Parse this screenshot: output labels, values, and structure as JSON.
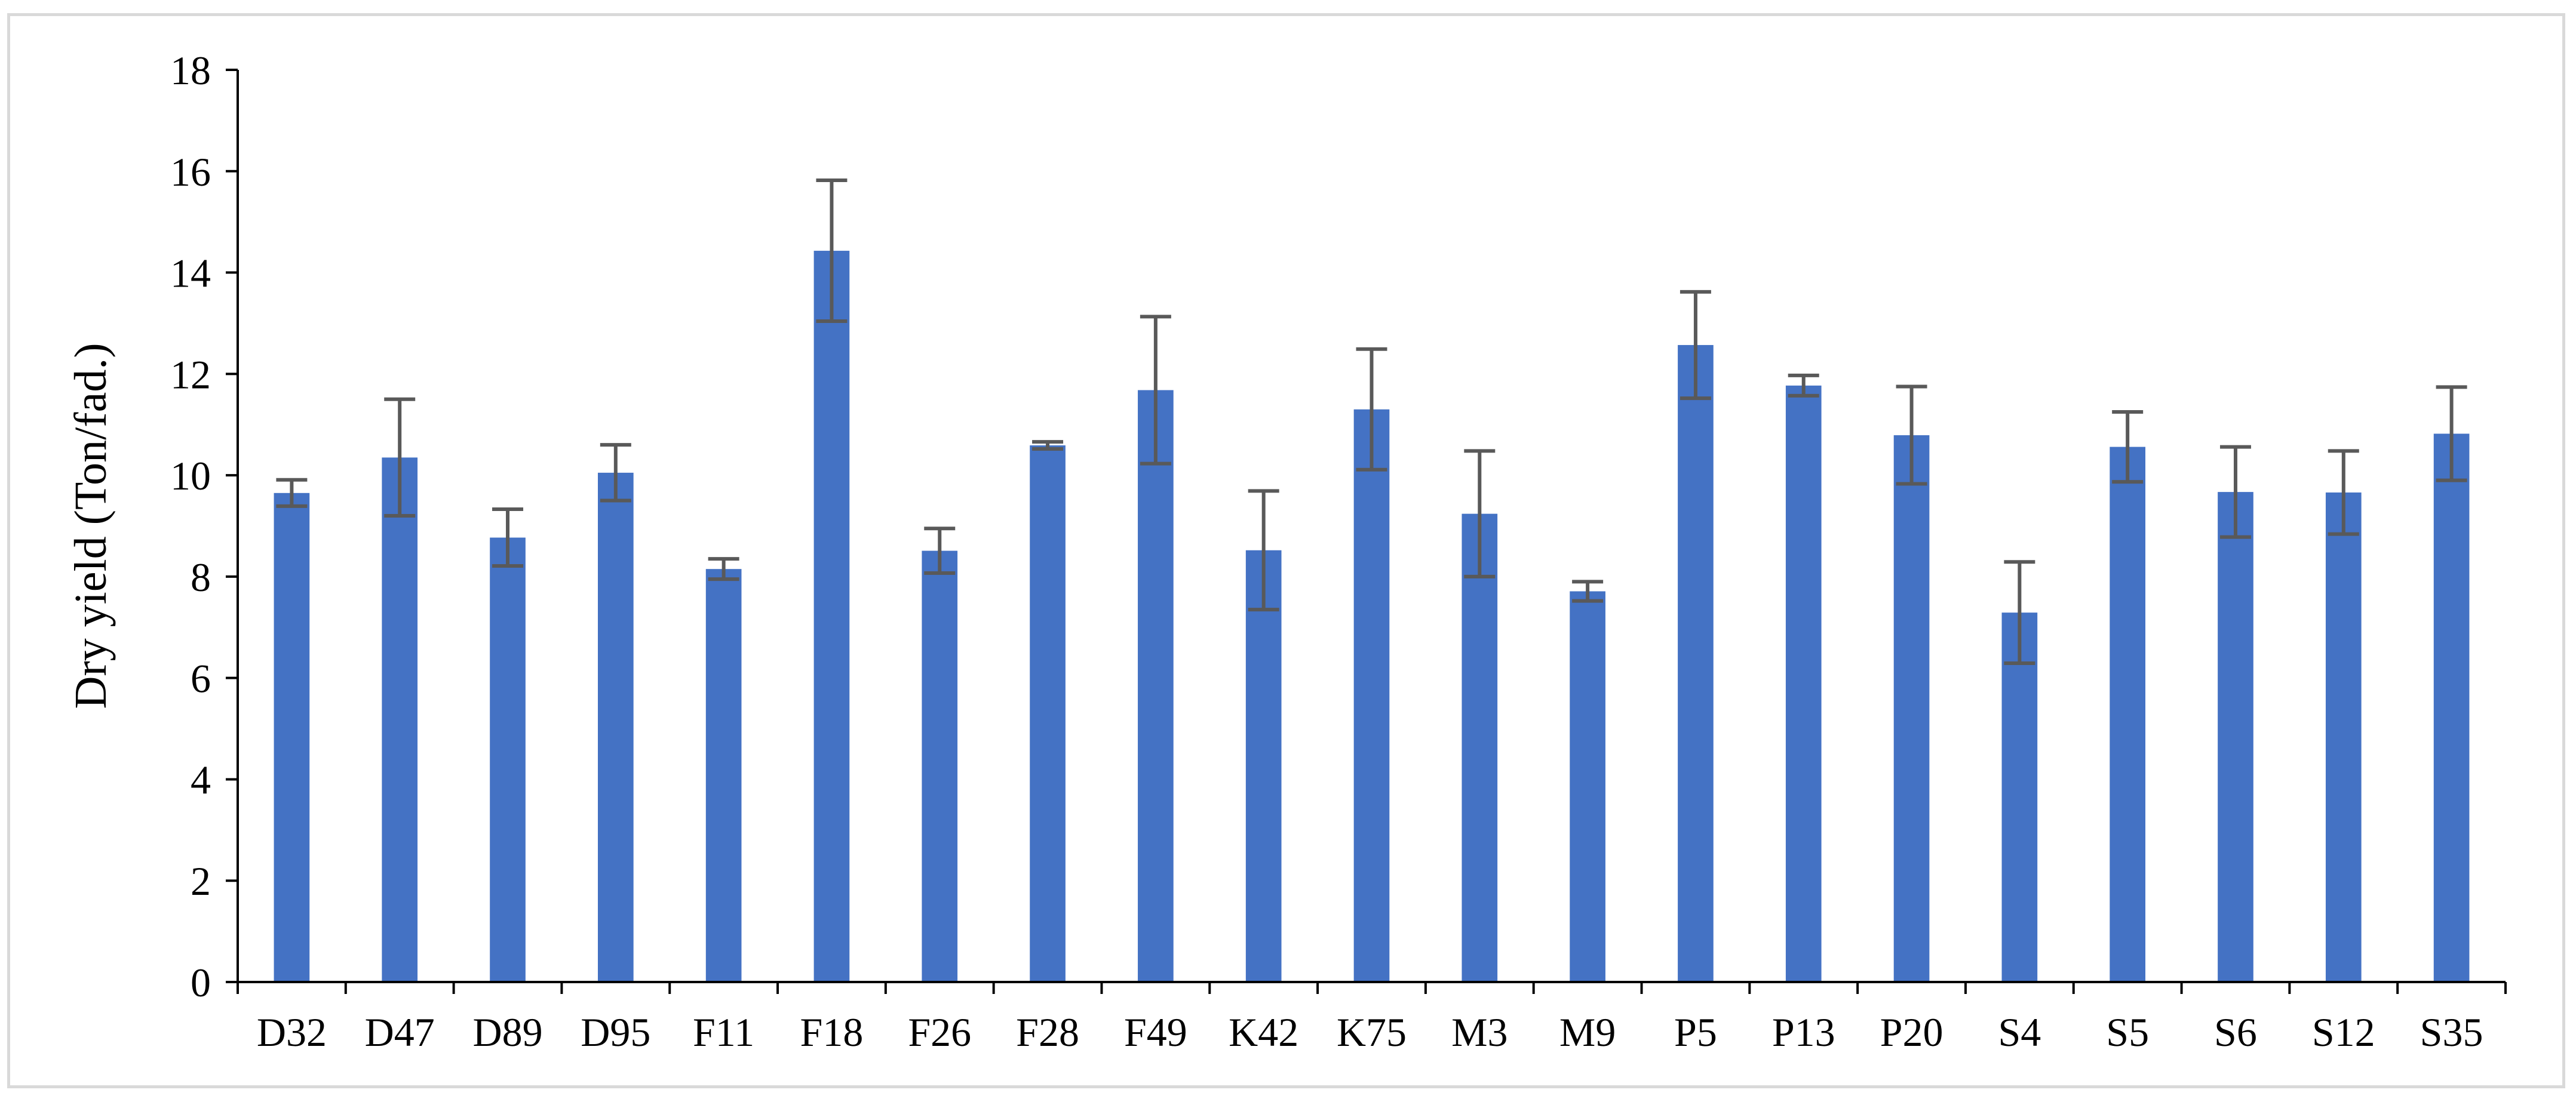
{
  "chart_data": {
    "type": "bar",
    "title": "",
    "xlabel": "",
    "ylabel": "Dry yield (Ton/fad.)",
    "ylim": [
      0,
      18
    ],
    "yticks": [
      0,
      2,
      4,
      6,
      8,
      10,
      12,
      14,
      16,
      18
    ],
    "grid": false,
    "legend": "none",
    "categories": [
      "D32",
      "D47",
      "D89",
      "D95",
      "F11",
      "F18",
      "F26",
      "F28",
      "F49",
      "K42",
      "K75",
      "M3",
      "M9",
      "P5",
      "P13",
      "P20",
      "S4",
      "S5",
      "S6",
      "S12",
      "S35"
    ],
    "series": [
      {
        "values": [
          9.65,
          10.35,
          8.77,
          10.05,
          8.15,
          14.43,
          8.51,
          10.59,
          11.68,
          8.52,
          11.3,
          9.24,
          7.71,
          12.57,
          11.77,
          10.79,
          7.29,
          10.56,
          9.67,
          9.66,
          10.82
        ],
        "errors": [
          0.26,
          1.15,
          0.56,
          0.55,
          0.2,
          1.39,
          0.44,
          0.07,
          1.45,
          1.17,
          1.19,
          1.24,
          0.19,
          1.05,
          0.2,
          0.96,
          1.0,
          0.69,
          0.89,
          0.82,
          0.92
        ],
        "color": "#4472c4"
      }
    ],
    "error_bar_color": "#595959",
    "axis_color": "#000000"
  }
}
